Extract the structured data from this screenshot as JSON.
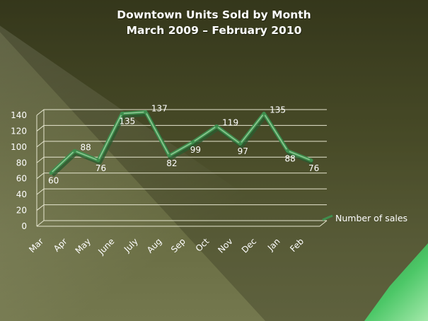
{
  "chart_data": {
    "type": "line",
    "title": "Downtown Units Sold by Month",
    "subtitle": "March 2009 – February 2010",
    "categories": [
      "Mar",
      "Apr",
      "May",
      "June",
      "July",
      "Aug",
      "Sep",
      "Oct",
      "Nov",
      "Dec",
      "Jan",
      "Feb"
    ],
    "series": [
      {
        "name": "Number of sales",
        "values": [
          60,
          88,
          76,
          135,
          137,
          82,
          99,
          119,
          97,
          135,
          88,
          76
        ]
      }
    ],
    "yticks": [
      0,
      20,
      40,
      60,
      80,
      100,
      120,
      140
    ],
    "ylim": [
      0,
      140
    ],
    "grid": true,
    "legend": "right",
    "data_labels": true,
    "three_d": true
  },
  "colors": {
    "line": "#3f8f4e",
    "line_highlight": "#a6d8a8",
    "grid": "#e6e6cf",
    "text": "#ffffff"
  }
}
